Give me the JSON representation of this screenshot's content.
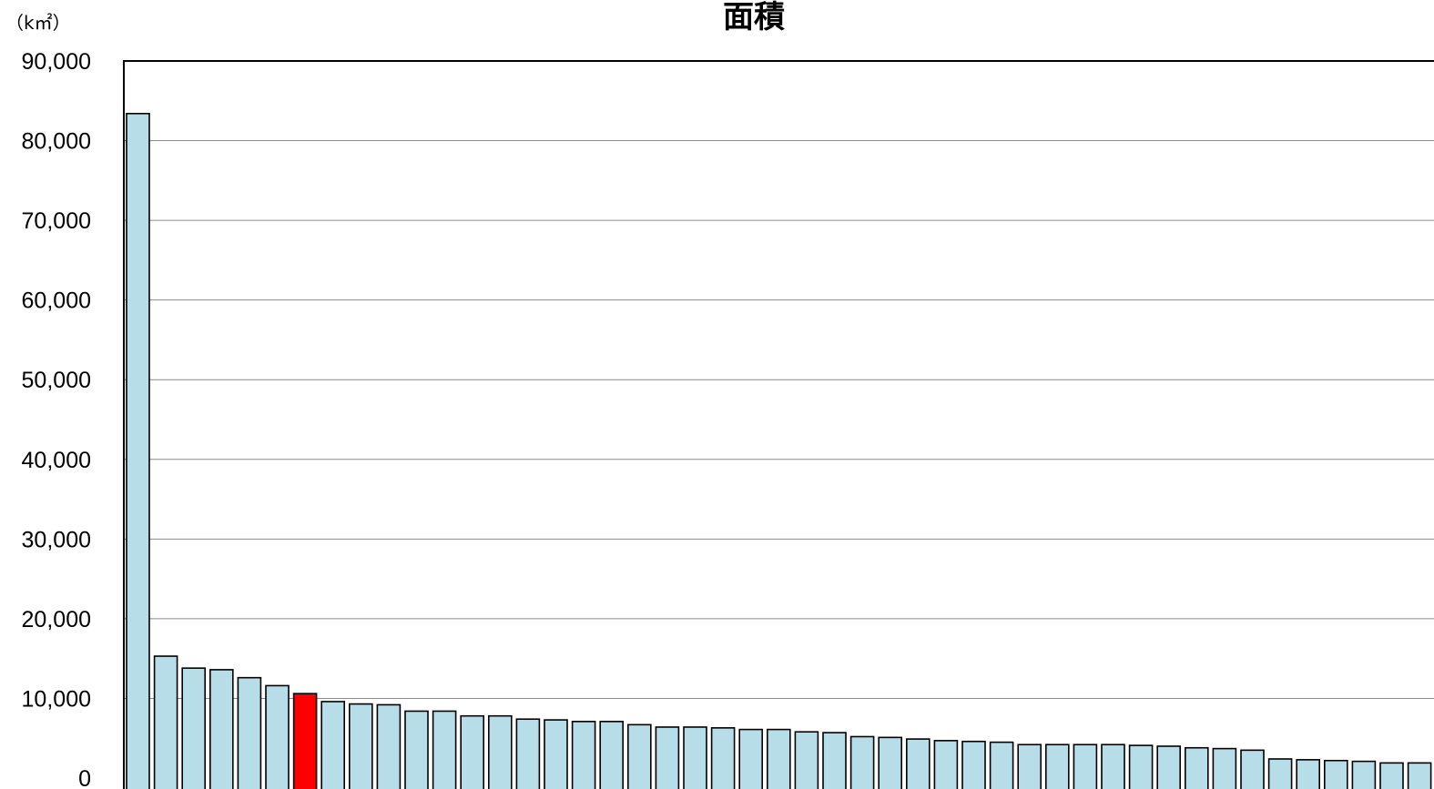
{
  "chart_data": {
    "type": "bar",
    "title": "面積",
    "unit_label": "（k㎡）",
    "ylim": [
      0,
      90000
    ],
    "yticks": [
      "0",
      "10,000",
      "20,000",
      "30,000",
      "40,000",
      "50,000",
      "60,000",
      "70,000",
      "80,000",
      "90,000"
    ],
    "grid": true,
    "bar_color": "#b7dde8",
    "highlight_color": "#ff0000",
    "highlight_index": 6,
    "values": [
      83400,
      15300,
      13800,
      13600,
      12600,
      11600,
      10600,
      9600,
      9300,
      9200,
      8400,
      8400,
      7800,
      7800,
      7400,
      7300,
      7100,
      7100,
      6700,
      6400,
      6400,
      6300,
      6100,
      6100,
      5800,
      5700,
      5200,
      5100,
      4900,
      4700,
      4600,
      4500,
      4200,
      4200,
      4200,
      4200,
      4100,
      4000,
      3800,
      3700,
      3500,
      2400,
      2300,
      2200,
      2100,
      1900,
      1900
    ]
  }
}
